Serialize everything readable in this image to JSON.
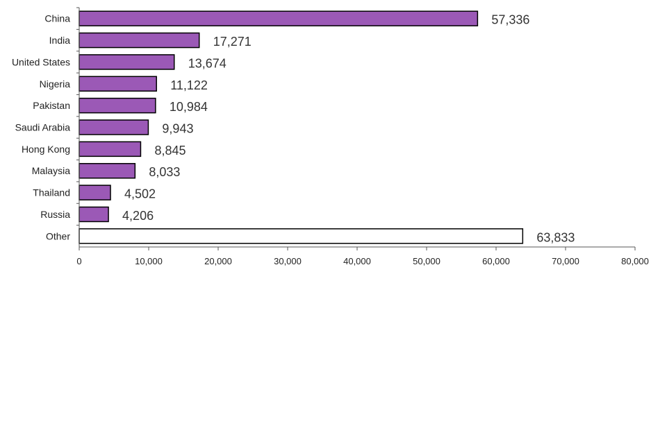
{
  "chart_data": {
    "type": "bar",
    "orientation": "horizontal",
    "title": "",
    "xlabel": "",
    "ylabel": "",
    "categories": [
      "China",
      "India",
      "United States",
      "Nigeria",
      "Pakistan",
      "Saudi Arabia",
      "Hong Kong",
      "Malaysia",
      "Thailand",
      "Russia",
      "Other"
    ],
    "values": [
      57336,
      17271,
      13674,
      11122,
      10984,
      9943,
      8845,
      8033,
      4502,
      4206,
      63833
    ],
    "value_labels": [
      "57,336",
      "17,271",
      "13,674",
      "11,122",
      "10,984",
      "9,943",
      "8,845",
      "8,033",
      "4,502",
      "4,206",
      "63,833"
    ],
    "xlim": [
      0,
      80000
    ],
    "xticks": [
      0,
      10000,
      20000,
      30000,
      40000,
      50000,
      60000,
      70000,
      80000
    ],
    "xtick_labels": [
      "0",
      "10,000",
      "20,000",
      "30,000",
      "40,000",
      "50,000",
      "60,000",
      "70,000",
      "80,000"
    ],
    "grid": false,
    "legend": "none",
    "colors": {
      "bar_fill": "#9b59b6",
      "other_fill": "#ffffff",
      "bar_stroke": "#000000",
      "axis": "#555555"
    }
  }
}
